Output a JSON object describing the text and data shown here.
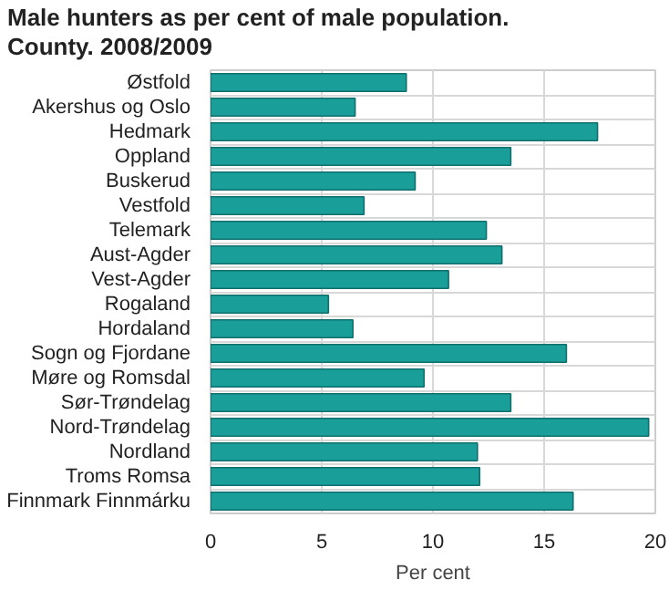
{
  "chart_data": {
    "type": "bar",
    "orientation": "horizontal",
    "title": "Male hunters as per cent of male population. County. 2008/2009",
    "xlabel": "Per cent",
    "categories": [
      "Østfold",
      "Akershus og Oslo",
      "Hedmark",
      "Oppland",
      "Buskerud",
      "Vestfold",
      "Telemark",
      "Aust-Agder",
      "Vest-Agder",
      "Rogaland",
      "Hordaland",
      "Sogn og Fjordane",
      "Møre og Romsdal",
      "Sør-Trøndelag",
      "Nord-Trøndelag",
      "Nordland",
      "Troms Romsa",
      "Finnmark Finnmárku"
    ],
    "values": [
      8.8,
      6.5,
      17.4,
      13.5,
      9.2,
      6.9,
      12.4,
      13.1,
      10.7,
      5.3,
      6.4,
      16.0,
      9.6,
      13.5,
      19.7,
      12.0,
      12.1,
      16.3
    ],
    "color": "#1a9e9a",
    "xlim": [
      0,
      20
    ],
    "xticks": [
      0,
      5,
      10,
      15,
      20
    ],
    "grid": true
  }
}
